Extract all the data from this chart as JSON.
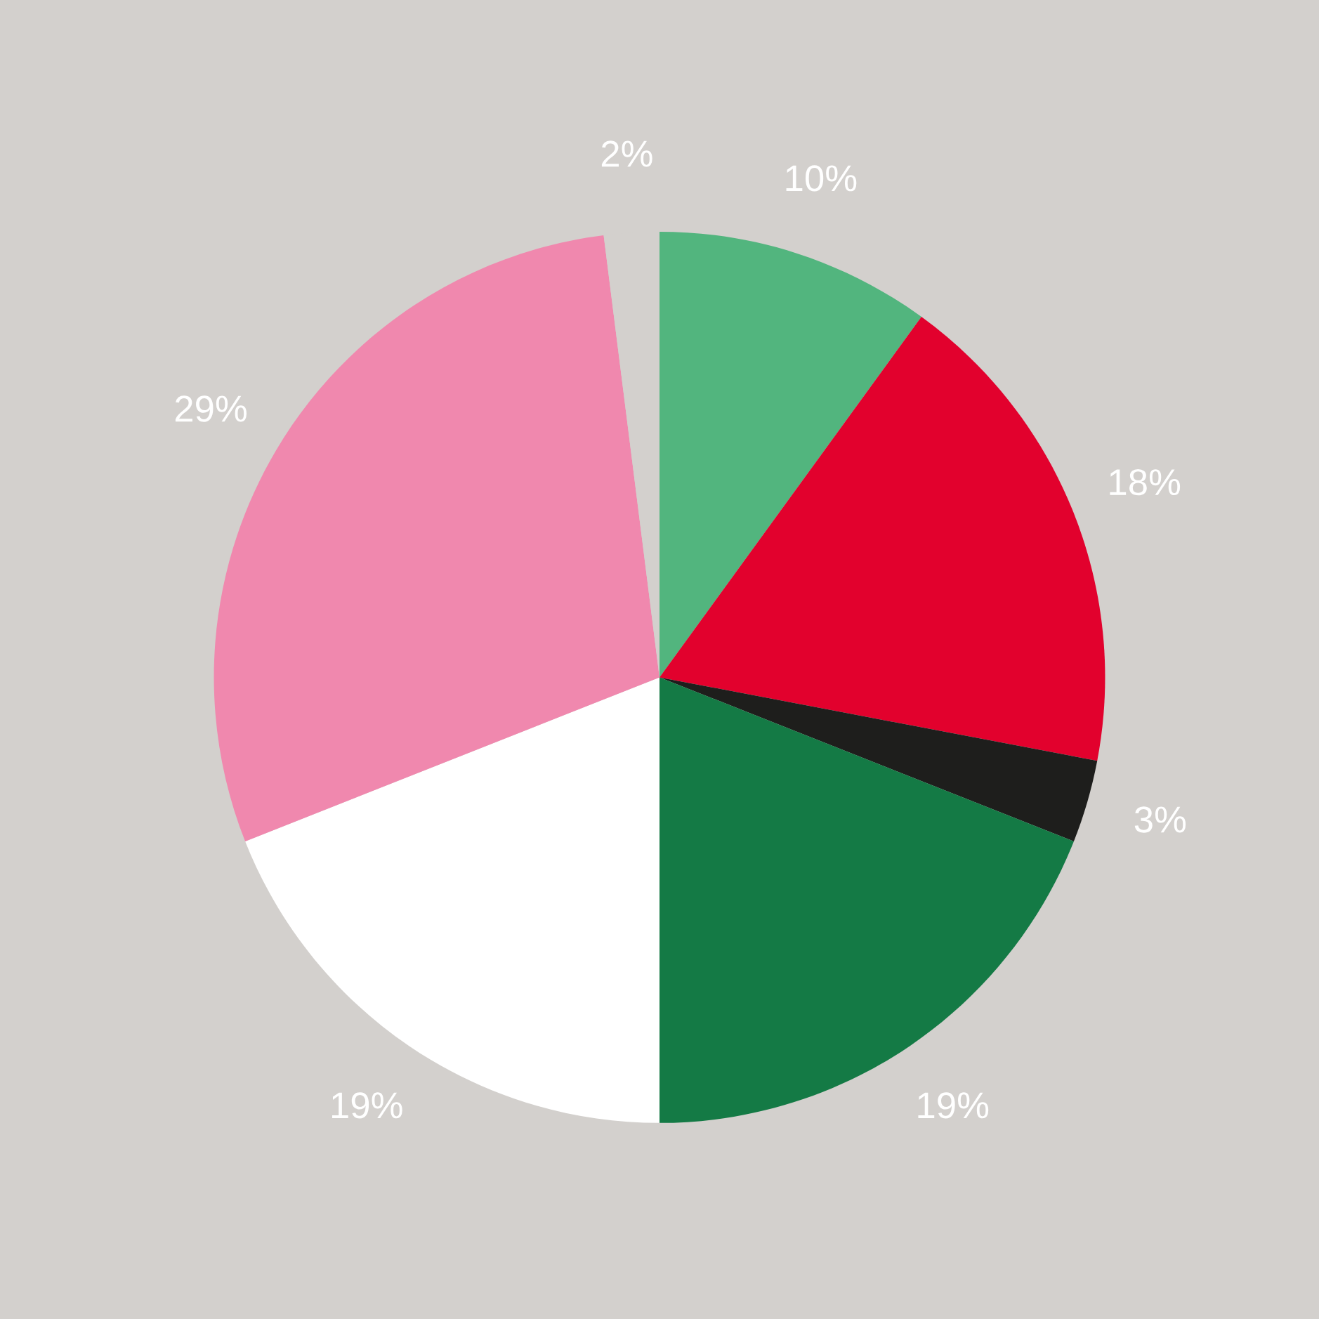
{
  "chart_data": {
    "type": "pie",
    "categories": [
      null,
      null,
      null,
      null,
      null,
      null,
      null
    ],
    "values": [
      10,
      18,
      3,
      19,
      19,
      29,
      2
    ],
    "value_labels": [
      "10%",
      "18%",
      "3%",
      "19%",
      "19%",
      "29%",
      "2%"
    ],
    "colors": [
      "#52b57e",
      "#e2012d",
      "#1e1e1c",
      "#147a45",
      "#ffffff",
      "#f088ae",
      "#d3d0cd"
    ],
    "legend": false
  }
}
